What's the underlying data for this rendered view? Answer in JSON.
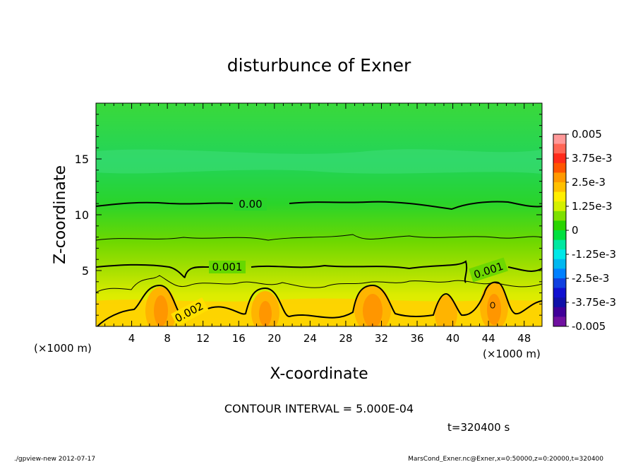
{
  "chart_data": {
    "type": "contour",
    "title": "disturbunce of Exner",
    "xlabel": "X-coordinate",
    "ylabel": "Z-coordinate",
    "x_unit_left": "(×1000 m)",
    "x_unit_right": "(×1000 m)",
    "xlim": [
      0,
      50
    ],
    "ylim": [
      0,
      20
    ],
    "x_ticks": [
      4,
      8,
      12,
      16,
      20,
      24,
      28,
      32,
      36,
      40,
      44,
      48
    ],
    "x_tick_labels": [
      "4",
      "8",
      "12",
      "16",
      "20",
      "24",
      "28",
      "32",
      "36",
      "40",
      "44",
      "48"
    ],
    "y_ticks": [
      5,
      10,
      15
    ],
    "y_tick_labels": [
      "5",
      "10",
      "15"
    ],
    "contour_labels": [
      "0.00",
      "0.001",
      "0.001",
      "0.002"
    ],
    "contour_levels": [
      0.0,
      0.0005,
      0.001,
      0.0015,
      0.002
    ],
    "colorbar": {
      "tick_labels": [
        "0.005",
        "3.75e-3",
        "2.5e-3",
        "1.25e-3",
        "0",
        "-1.25e-3",
        "-2.5e-3",
        "-3.75e-3",
        "-0.005"
      ],
      "values": [
        0.005,
        0.00375,
        0.0025,
        0.00125,
        0,
        -0.00125,
        -0.0025,
        -0.00375,
        -0.005
      ],
      "colors": [
        "#ff9999",
        "#ff6655",
        "#ff2a1a",
        "#ff5500",
        "#ff9900",
        "#ffc000",
        "#ffee00",
        "#d4f000",
        "#7ee000",
        "#2ad400",
        "#00e040",
        "#00e8a0",
        "#00e8e8",
        "#00b8f0",
        "#0080ff",
        "#1040e0",
        "#1010d0",
        "#1010a8",
        "#400098",
        "#7010a0"
      ]
    },
    "annotation": "CONTOUR INTERVAL = 5.000E-04",
    "time_label": "t=320400 s"
  },
  "footer": {
    "left": "./gpview-new   2012-07-17",
    "right": "MarsCond_Exner.nc@Exner,x=0:50000,z=0:20000,t=320400"
  }
}
